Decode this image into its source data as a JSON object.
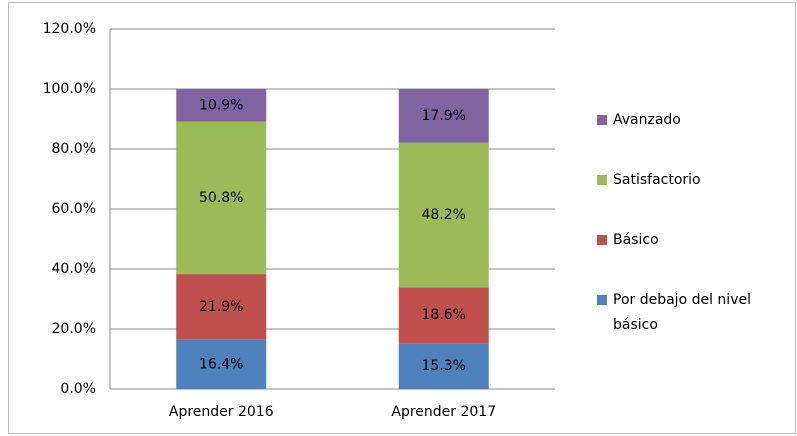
{
  "chart_data": {
    "type": "stacked_bar",
    "categories": [
      "Aprender 2016",
      "Aprender 2017"
    ],
    "series": [
      {
        "name": "Por debajo del nivel básico",
        "color": "#4f81bd",
        "values": [
          16.4,
          15.3
        ],
        "value_labels": [
          "16.4%",
          "15.3%"
        ]
      },
      {
        "name": "Básico",
        "color": "#c0504d",
        "values": [
          21.9,
          18.6
        ],
        "value_labels": [
          "21.9%",
          "18.6%"
        ]
      },
      {
        "name": "Satisfactorio",
        "color": "#9bbb59",
        "values": [
          50.8,
          48.2
        ],
        "value_labels": [
          "50.8%",
          "48.2%"
        ]
      },
      {
        "name": "Avanzado",
        "color": "#8064a2",
        "values": [
          10.9,
          17.9
        ],
        "value_labels": [
          "10.9%",
          "17.9%"
        ]
      }
    ],
    "ylim": [
      0,
      120
    ],
    "yticks": [
      {
        "value": 0,
        "label": "0.0%"
      },
      {
        "value": 20,
        "label": "20.0%"
      },
      {
        "value": 40,
        "label": "40.0%"
      },
      {
        "value": 60,
        "label": "60.0%"
      },
      {
        "value": 80,
        "label": "80.0%"
      },
      {
        "value": 100,
        "label": "100.0%"
      },
      {
        "value": 120,
        "label": "120.0%"
      }
    ],
    "grid": true,
    "legend": "right"
  }
}
